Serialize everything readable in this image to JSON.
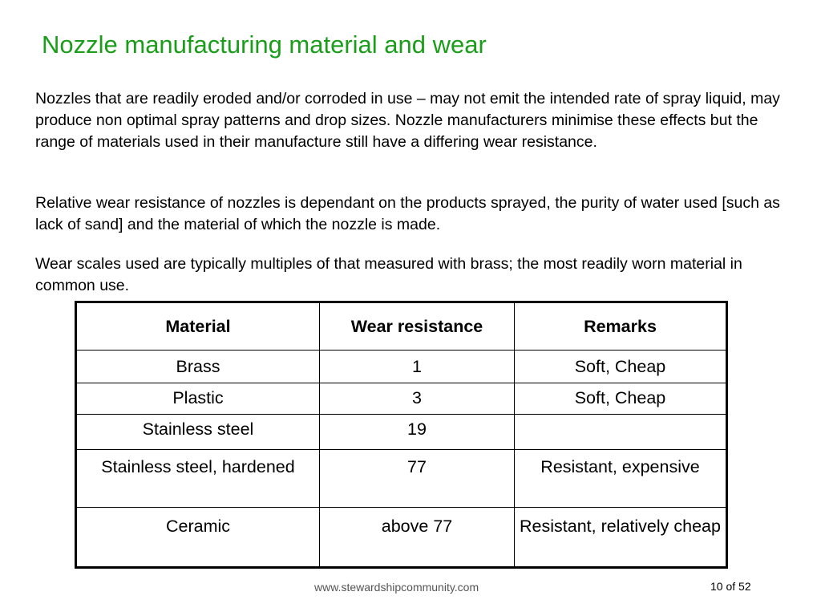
{
  "title": "Nozzle manufacturing material and wear",
  "paragraphs": [
    "Nozzles that are readily eroded and/or corroded in use – may not emit the intended rate of spray liquid, may produce non optimal spray patterns and drop sizes. Nozzle manufacturers minimise these effects but the range of materials used in their manufacture still have a differing wear resistance.",
    "Relative wear resistance of nozzles is dependant on the products sprayed, the purity of water used [such as lack of sand] and the material of which the nozzle is made.",
    "Wear scales used are typically multiples of that measured with brass; the most readily worn material in common use."
  ],
  "table": {
    "headers": [
      "Material",
      "Wear resistance",
      "Remarks"
    ],
    "rows": [
      [
        "Brass",
        "1",
        "Soft, Cheap"
      ],
      [
        "Plastic",
        "3",
        "Soft, Cheap"
      ],
      [
        "Stainless steel",
        "19",
        ""
      ],
      [
        "Stainless steel, hardened",
        "77",
        "Resistant, expensive"
      ],
      [
        "Ceramic",
        "above 77",
        "Resistant, relatively cheap"
      ]
    ]
  },
  "footer": {
    "url": "www.stewardshipcommunity.com",
    "page": "10 of 52"
  },
  "colors": {
    "title": "#1a9e1a"
  }
}
